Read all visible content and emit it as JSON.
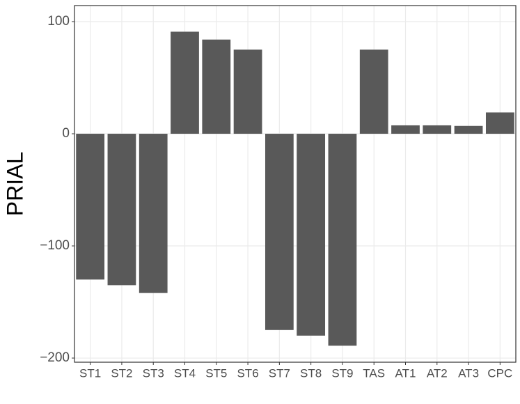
{
  "chart_data": {
    "type": "bar",
    "y_label": "PRIAL",
    "categories": [
      "ST1",
      "ST2",
      "ST3",
      "ST4",
      "ST5",
      "ST6",
      "ST7",
      "ST8",
      "ST9",
      "TAS",
      "AT1",
      "AT2",
      "AT3",
      "CPC"
    ],
    "values": [
      -130,
      -135,
      -142,
      91,
      84,
      75,
      -175,
      -180,
      -189,
      75,
      7.5,
      7.5,
      7,
      19
    ],
    "color": "#595959",
    "ylim": [
      -203.7,
      114.3
    ],
    "yticks": [
      {
        "value": -200,
        "label": "−200"
      },
      {
        "value": -100,
        "label": "−100"
      },
      0,
      100
    ],
    "grid": true
  }
}
